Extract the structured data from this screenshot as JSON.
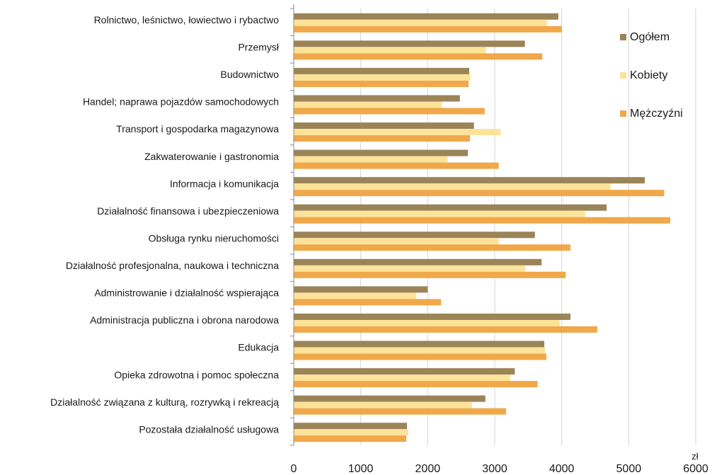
{
  "chart_data": {
    "type": "bar",
    "orientation": "horizontal",
    "categories": [
      "Rolnictwo, leśnictwo, łowiectwo i rybactwo",
      "Przemysł",
      "Budownictwo",
      "Handel; naprawa pojazdów samochodowych",
      "Transport i gospodarka magazynowa",
      "Zakwaterowanie i gastronomia",
      "Informacja i komunikacja",
      "Działalność finansowa i ubezpieczeniowa",
      "Obsługa rynku nieruchomości",
      "Działalność profesjonalna, naukowa i techniczna",
      "Administrowanie i działalność wspierająca",
      "Administracja publiczna i obrona narodowa",
      "Edukacja",
      "Opieka zdrowotna i pomoc społeczna",
      "Działalność związana z kulturą, rozrywką i rekreacją",
      "Pozostała działalność usługowa"
    ],
    "series": [
      {
        "name": "Ogółem",
        "color": "#9b8458",
        "values": [
          3950,
          3450,
          2620,
          2480,
          2690,
          2600,
          5240,
          4670,
          3600,
          3700,
          2000,
          4130,
          3740,
          3300,
          2860,
          1690
        ]
      },
      {
        "name": "Kobiety",
        "color": "#fde39a",
        "values": [
          3780,
          2870,
          2640,
          2210,
          3090,
          2300,
          4730,
          4350,
          3060,
          3460,
          1830,
          3970,
          3750,
          3230,
          2660,
          1710
        ]
      },
      {
        "name": "Mężczyźni",
        "color": "#f0a84a",
        "values": [
          4000,
          3710,
          2610,
          2850,
          2630,
          3060,
          5530,
          5620,
          4130,
          4060,
          2200,
          4530,
          3770,
          3640,
          3170,
          1680
        ]
      }
    ],
    "xlim": [
      0,
      6000
    ],
    "xticks": [
      "0",
      "1000",
      "2000",
      "3000",
      "4000",
      "5000",
      "6000"
    ],
    "xunit": "zł",
    "grid": true,
    "legend_position": "right"
  }
}
